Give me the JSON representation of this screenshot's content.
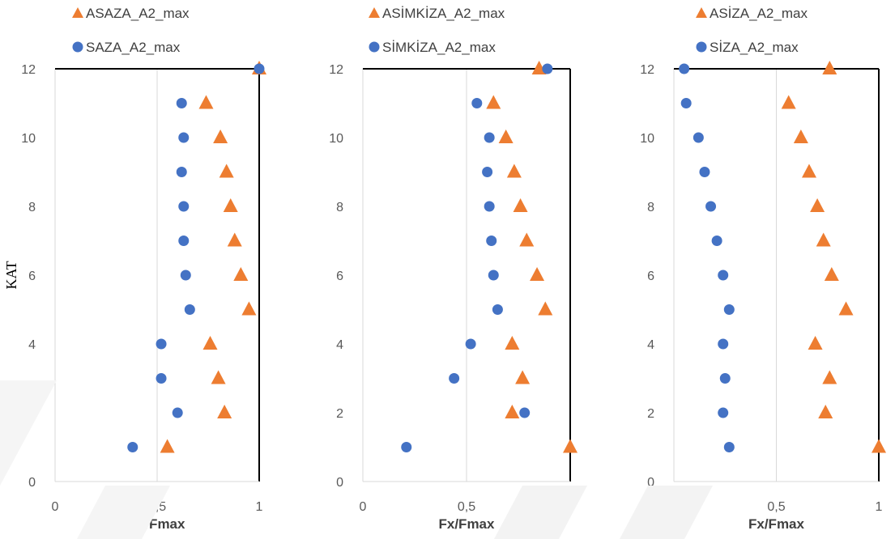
{
  "chart_data": [
    {
      "type": "scatter",
      "xlabel": "Fx/Fmax",
      "ylabel": "KAT",
      "xlim": [
        0,
        1
      ],
      "ylim": [
        0,
        12
      ],
      "xticks": [
        "0",
        "0,5",
        "1"
      ],
      "yticks": [
        "0",
        "2",
        "4",
        "6",
        "8",
        "10",
        "12"
      ],
      "grid": "vertical",
      "legend_position": "top",
      "series": [
        {
          "name": "ASAZA_A2_max",
          "marker": "triangle",
          "color": "#ED7D31",
          "x": [
            0.55,
            0.83,
            0.8,
            0.76,
            0.95,
            0.91,
            0.88,
            0.86,
            0.84,
            0.81,
            0.74,
            1.0
          ],
          "y": [
            1,
            2,
            3,
            4,
            5,
            6,
            7,
            8,
            9,
            10,
            11,
            12
          ]
        },
        {
          "name": "SAZA_A2_max",
          "marker": "circle",
          "color": "#4472C4",
          "x": [
            0.38,
            0.6,
            0.52,
            0.52,
            0.66,
            0.64,
            0.63,
            0.63,
            0.62,
            0.63,
            0.62,
            1.0
          ],
          "y": [
            1,
            2,
            3,
            4,
            5,
            6,
            7,
            8,
            9,
            10,
            11,
            12
          ]
        }
      ]
    },
    {
      "type": "scatter",
      "xlabel": "Fx/Fmax",
      "ylabel": "",
      "xlim": [
        0,
        1
      ],
      "ylim": [
        0,
        12
      ],
      "xticks": [
        "0",
        "0,5",
        "1"
      ],
      "yticks": [
        "0",
        "2",
        "4",
        "6",
        "8",
        "10",
        "12"
      ],
      "grid": "vertical",
      "legend_position": "top",
      "series": [
        {
          "name": "ASİMKİZA_A2_max",
          "marker": "triangle",
          "color": "#ED7D31",
          "x": [
            1.0,
            0.72,
            0.77,
            0.72,
            0.88,
            0.84,
            0.79,
            0.76,
            0.73,
            0.69,
            0.63,
            0.85
          ],
          "y": [
            1,
            2,
            3,
            4,
            5,
            6,
            7,
            8,
            9,
            10,
            11,
            12
          ]
        },
        {
          "name": "SİMKİZA_A2_max",
          "marker": "circle",
          "color": "#4472C4",
          "x": [
            0.21,
            0.78,
            0.44,
            0.52,
            0.65,
            0.63,
            0.62,
            0.61,
            0.6,
            0.61,
            0.55,
            0.89
          ],
          "y": [
            1,
            2,
            3,
            4,
            5,
            6,
            7,
            8,
            9,
            10,
            11,
            12
          ]
        }
      ]
    },
    {
      "type": "scatter",
      "xlabel": "Fx/Fmax",
      "ylabel": "",
      "xlim": [
        0,
        1
      ],
      "ylim": [
        0,
        12
      ],
      "xticks": [
        "0",
        "0,5",
        "1"
      ],
      "yticks": [
        "0",
        "2",
        "4",
        "6",
        "8",
        "10",
        "12"
      ],
      "grid": "vertical",
      "legend_position": "top",
      "series": [
        {
          "name": "ASİZA_A2_max",
          "marker": "triangle",
          "color": "#ED7D31",
          "x": [
            1.0,
            0.74,
            0.76,
            0.69,
            0.84,
            0.77,
            0.73,
            0.7,
            0.66,
            0.62,
            0.56,
            0.76
          ],
          "y": [
            1,
            2,
            3,
            4,
            5,
            6,
            7,
            8,
            9,
            10,
            11,
            12
          ]
        },
        {
          "name": "SİZA_A2_max",
          "marker": "circle",
          "color": "#4472C4",
          "x": [
            0.27,
            0.24,
            0.25,
            0.24,
            0.27,
            0.24,
            0.21,
            0.18,
            0.15,
            0.12,
            0.06,
            0.05
          ],
          "y": [
            1,
            2,
            3,
            4,
            5,
            6,
            7,
            8,
            9,
            10,
            11,
            12
          ]
        }
      ]
    }
  ]
}
